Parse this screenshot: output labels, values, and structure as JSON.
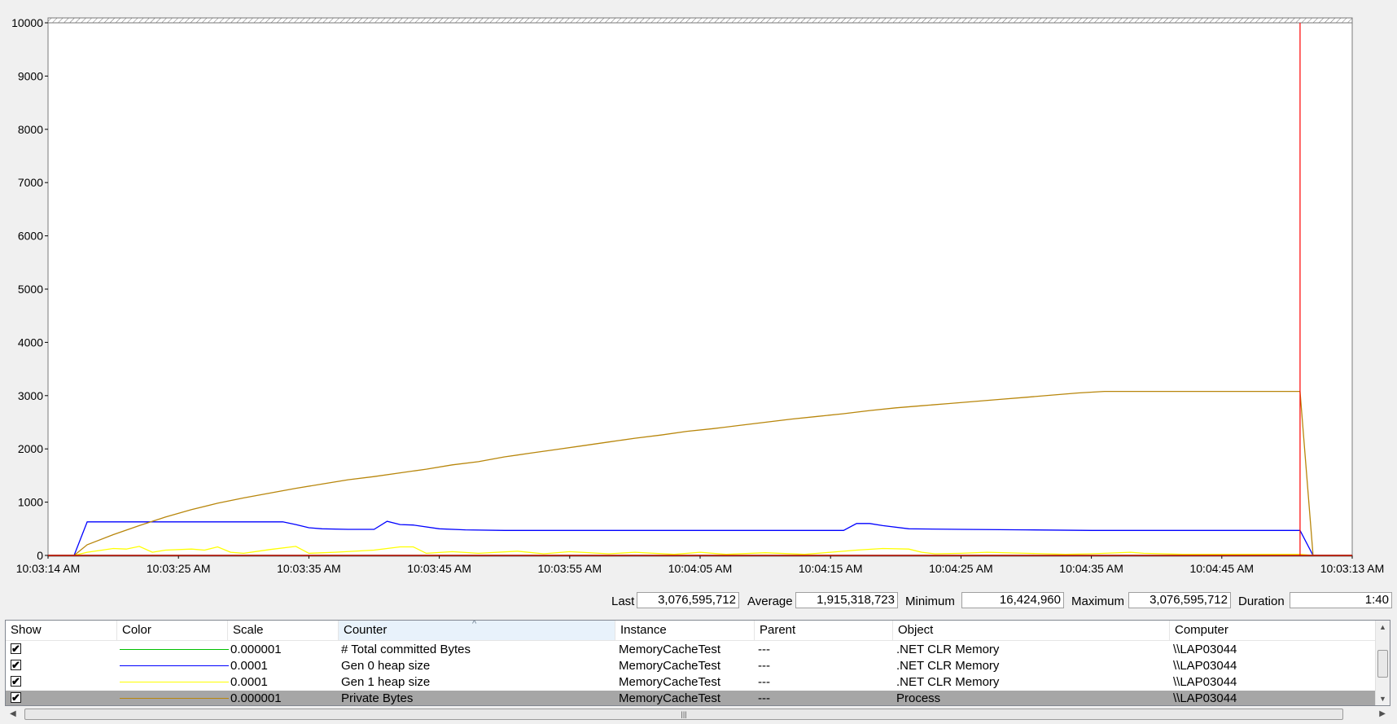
{
  "chart_data": {
    "type": "line",
    "y_ticks": [
      "10000",
      "9000",
      "8000",
      "7000",
      "6000",
      "5000",
      "4000",
      "3000",
      "2000",
      "1000",
      "0"
    ],
    "ylim": [
      0,
      10000
    ],
    "x_ticks": [
      "10:03:14 AM",
      "10:03:25 AM",
      "10:03:35 AM",
      "10:03:45 AM",
      "10:03:55 AM",
      "10:04:05 AM",
      "10:04:15 AM",
      "10:04:25 AM",
      "10:04:35 AM",
      "10:04:45 AM",
      "10:03:13 AM"
    ],
    "x_range": [
      0,
      100
    ],
    "grid": false,
    "cursor_at": 96,
    "series": [
      {
        "name": "# Total committed Bytes",
        "color": "#00c000",
        "points": [
          [
            0,
            0
          ],
          [
            100,
            0
          ]
        ]
      },
      {
        "name": "Gen 0 heap size",
        "color": "#0000ff",
        "points": [
          [
            0,
            0
          ],
          [
            2,
            0
          ],
          [
            3,
            630
          ],
          [
            18,
            630
          ],
          [
            19,
            580
          ],
          [
            20,
            520
          ],
          [
            21,
            500
          ],
          [
            23,
            490
          ],
          [
            25,
            490
          ],
          [
            26,
            640
          ],
          [
            27,
            580
          ],
          [
            28,
            570
          ],
          [
            30,
            500
          ],
          [
            32,
            480
          ],
          [
            35,
            470
          ],
          [
            60,
            470
          ],
          [
            61,
            470
          ],
          [
            62,
            600
          ],
          [
            63,
            600
          ],
          [
            64,
            560
          ],
          [
            66,
            500
          ],
          [
            70,
            490
          ],
          [
            75,
            480
          ],
          [
            80,
            470
          ],
          [
            96,
            470
          ],
          [
            97,
            0
          ],
          [
            100,
            0
          ]
        ]
      },
      {
        "name": "Gen 1 heap size",
        "color": "#ffff00",
        "points": [
          [
            0,
            0
          ],
          [
            2,
            0
          ],
          [
            3,
            60
          ],
          [
            5,
            130
          ],
          [
            6,
            120
          ],
          [
            7,
            170
          ],
          [
            8,
            60
          ],
          [
            9,
            100
          ],
          [
            11,
            120
          ],
          [
            12,
            100
          ],
          [
            13,
            160
          ],
          [
            14,
            60
          ],
          [
            15,
            40
          ],
          [
            17,
            110
          ],
          [
            19,
            170
          ],
          [
            20,
            40
          ],
          [
            22,
            60
          ],
          [
            25,
            100
          ],
          [
            27,
            160
          ],
          [
            28,
            160
          ],
          [
            29,
            40
          ],
          [
            31,
            70
          ],
          [
            33,
            40
          ],
          [
            36,
            80
          ],
          [
            38,
            30
          ],
          [
            40,
            70
          ],
          [
            43,
            30
          ],
          [
            45,
            60
          ],
          [
            48,
            20
          ],
          [
            50,
            60
          ],
          [
            52,
            20
          ],
          [
            55,
            50
          ],
          [
            58,
            20
          ],
          [
            60,
            60
          ],
          [
            62,
            100
          ],
          [
            64,
            130
          ],
          [
            66,
            120
          ],
          [
            67,
            60
          ],
          [
            68,
            30
          ],
          [
            70,
            40
          ],
          [
            72,
            60
          ],
          [
            75,
            40
          ],
          [
            78,
            20
          ],
          [
            80,
            30
          ],
          [
            83,
            60
          ],
          [
            84,
            40
          ],
          [
            87,
            20
          ],
          [
            90,
            20
          ],
          [
            96,
            20
          ],
          [
            97,
            0
          ],
          [
            100,
            0
          ]
        ]
      },
      {
        "name": "Private Bytes",
        "color": "#b8860b",
        "points": [
          [
            0,
            0
          ],
          [
            2,
            0
          ],
          [
            3,
            200
          ],
          [
            5,
            390
          ],
          [
            7,
            560
          ],
          [
            9,
            720
          ],
          [
            11,
            860
          ],
          [
            13,
            980
          ],
          [
            15,
            1080
          ],
          [
            17,
            1170
          ],
          [
            19,
            1260
          ],
          [
            21,
            1340
          ],
          [
            23,
            1420
          ],
          [
            25,
            1480
          ],
          [
            27,
            1550
          ],
          [
            29,
            1620
          ],
          [
            31,
            1700
          ],
          [
            33,
            1760
          ],
          [
            35,
            1850
          ],
          [
            37,
            1920
          ],
          [
            39,
            1990
          ],
          [
            41,
            2060
          ],
          [
            43,
            2130
          ],
          [
            45,
            2200
          ],
          [
            47,
            2260
          ],
          [
            49,
            2330
          ],
          [
            51,
            2380
          ],
          [
            53,
            2440
          ],
          [
            55,
            2500
          ],
          [
            57,
            2560
          ],
          [
            59,
            2610
          ],
          [
            61,
            2660
          ],
          [
            63,
            2720
          ],
          [
            65,
            2770
          ],
          [
            67,
            2810
          ],
          [
            69,
            2850
          ],
          [
            71,
            2890
          ],
          [
            73,
            2930
          ],
          [
            75,
            2970
          ],
          [
            77,
            3010
          ],
          [
            79,
            3050
          ],
          [
            81,
            3080
          ],
          [
            83,
            3080
          ],
          [
            85,
            3080
          ],
          [
            96,
            3080
          ],
          [
            97,
            0
          ],
          [
            100,
            0
          ]
        ]
      }
    ]
  },
  "stats": {
    "last_label": "Last",
    "last_value": "3,076,595,712",
    "average_label": "Average",
    "average_value": "1,915,318,723",
    "minimum_label": "Minimum",
    "minimum_value": "16,424,960",
    "maximum_label": "Maximum",
    "maximum_value": "3,076,595,712",
    "duration_label": "Duration",
    "duration_value": "1:40"
  },
  "table": {
    "headers": {
      "show": "Show",
      "color": "Color",
      "scale": "Scale",
      "counter": "Counter",
      "instance": "Instance",
      "parent": "Parent",
      "object": "Object",
      "computer": "Computer"
    },
    "rows": [
      {
        "checked": "✔",
        "color": "#00c000",
        "scale": "0.000001",
        "counter": "# Total committed Bytes",
        "instance": "MemoryCacheTest",
        "parent": "---",
        "object": ".NET CLR Memory",
        "computer": "\\\\LAP03044"
      },
      {
        "checked": "✔",
        "color": "#0000ff",
        "scale": "0.0001",
        "counter": "Gen 0 heap size",
        "instance": "MemoryCacheTest",
        "parent": "---",
        "object": ".NET CLR Memory",
        "computer": "\\\\LAP03044"
      },
      {
        "checked": "✔",
        "color": "#ffff00",
        "scale": "0.0001",
        "counter": "Gen 1 heap size",
        "instance": "MemoryCacheTest",
        "parent": "---",
        "object": ".NET CLR Memory",
        "computer": "\\\\LAP03044"
      },
      {
        "checked": "✔",
        "color": "#b8860b",
        "scale": "0.000001",
        "counter": "Private Bytes",
        "instance": "MemoryCacheTest",
        "parent": "---",
        "object": "Process",
        "computer": "\\\\LAP03044"
      }
    ],
    "selected_row": 3
  }
}
